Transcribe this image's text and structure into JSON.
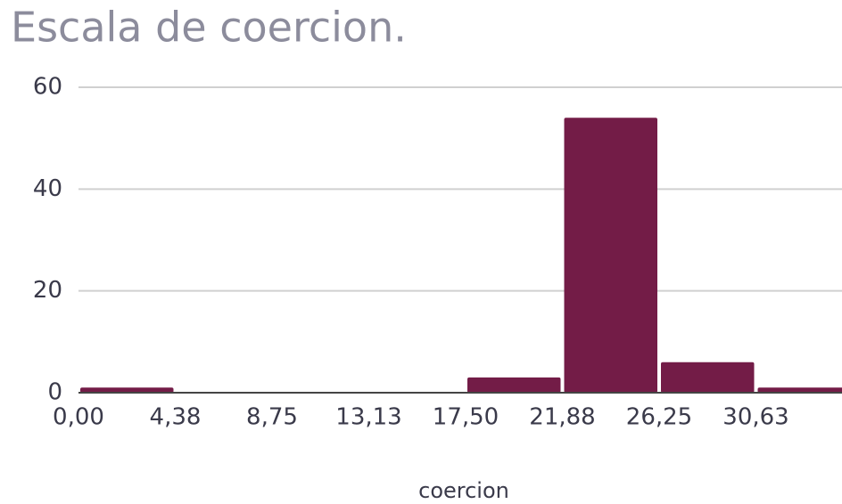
{
  "chart_data": {
    "type": "histogram",
    "title": "Escala de coercion.",
    "x_label": "coercion",
    "bins": [
      0,
      4.375,
      8.75,
      13.125,
      17.5,
      21.875,
      26.25,
      30.625,
      35
    ],
    "values": [
      1,
      0,
      0,
      0,
      3,
      54,
      6,
      1
    ],
    "color": "#731c47",
    "xlim": [
      0,
      35
    ],
    "xticks": [
      {
        "value": 0,
        "label": "0,00"
      },
      {
        "value": 4.375,
        "label": "4,38"
      },
      {
        "value": 8.75,
        "label": "8,75"
      },
      {
        "value": 13.125,
        "label": "13,13"
      },
      {
        "value": 17.5,
        "label": "17,50"
      },
      {
        "value": 21.875,
        "label": "21,88"
      },
      {
        "value": 26.25,
        "label": "26,25"
      },
      {
        "value": 30.625,
        "label": "30,63"
      }
    ],
    "ylim": [
      0,
      60
    ],
    "yticks": [
      0,
      20,
      40,
      60
    ],
    "grid": true
  }
}
